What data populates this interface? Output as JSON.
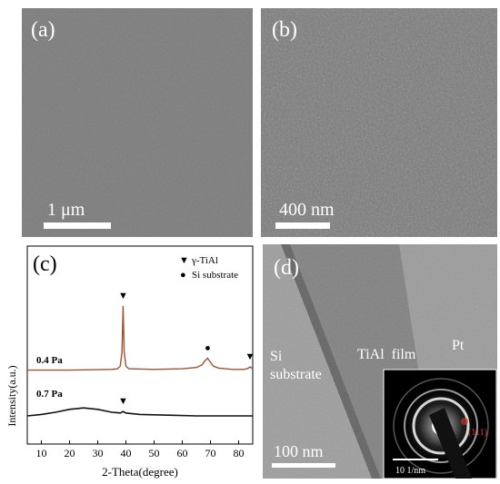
{
  "panel_a": {
    "label": "(a)",
    "scale_bar": "1 μm"
  },
  "panel_b": {
    "label": "(b)",
    "scale_bar": "400 nm"
  },
  "panel_d": {
    "label": "(d)",
    "regions": [
      "Si",
      "substrate",
      "TiAl  film",
      "Pt"
    ],
    "scale_bar": "100 nm",
    "inset": {
      "scale_bar": "10 1/nm",
      "ring_label": "(111)"
    }
  },
  "chart_data": {
    "type": "line",
    "title": "(c)",
    "xlabel": "2-Theta(degree)",
    "ylabel": "Intensity(a.u.)",
    "xlim": [
      5,
      85
    ],
    "xticks": [
      10,
      20,
      30,
      40,
      50,
      60,
      70,
      80
    ],
    "legend": [
      {
        "marker": "▼",
        "label": "γ-TiAl"
      },
      {
        "marker": "●",
        "label": "Si substrate"
      }
    ],
    "series": [
      {
        "name": "0.4 Pa",
        "color": "#a0522d",
        "x": [
          5,
          20,
          35,
          37,
          38,
          38.6,
          39,
          39.4,
          40,
          41,
          50,
          60,
          65,
          67,
          68,
          69,
          70,
          71,
          73,
          78,
          82,
          83.5,
          84,
          85
        ],
        "y": [
          0.02,
          0.02,
          0.03,
          0.04,
          0.08,
          0.3,
          1.0,
          0.3,
          0.08,
          0.04,
          0.03,
          0.04,
          0.06,
          0.1,
          0.16,
          0.2,
          0.14,
          0.08,
          0.05,
          0.03,
          0.03,
          0.05,
          0.07,
          0.04
        ]
      },
      {
        "name": "0.7 Pa",
        "color": "#111111",
        "x": [
          5,
          10,
          15,
          20,
          25,
          30,
          35,
          38,
          39,
          40,
          45,
          55,
          65,
          75,
          85
        ],
        "y": [
          0.0,
          0.02,
          0.05,
          0.09,
          0.11,
          0.09,
          0.05,
          0.04,
          0.06,
          0.04,
          0.02,
          0.01,
          0.0,
          0.0,
          0.0
        ]
      }
    ],
    "markers": [
      {
        "symbol": "▼",
        "x": 39,
        "series": "0.4 Pa"
      },
      {
        "symbol": "●",
        "x": 69,
        "series": "0.4 Pa"
      },
      {
        "symbol": "▼",
        "x": 84,
        "series": "0.4 Pa"
      },
      {
        "symbol": "▼",
        "x": 39,
        "series": "0.7 Pa"
      }
    ]
  }
}
